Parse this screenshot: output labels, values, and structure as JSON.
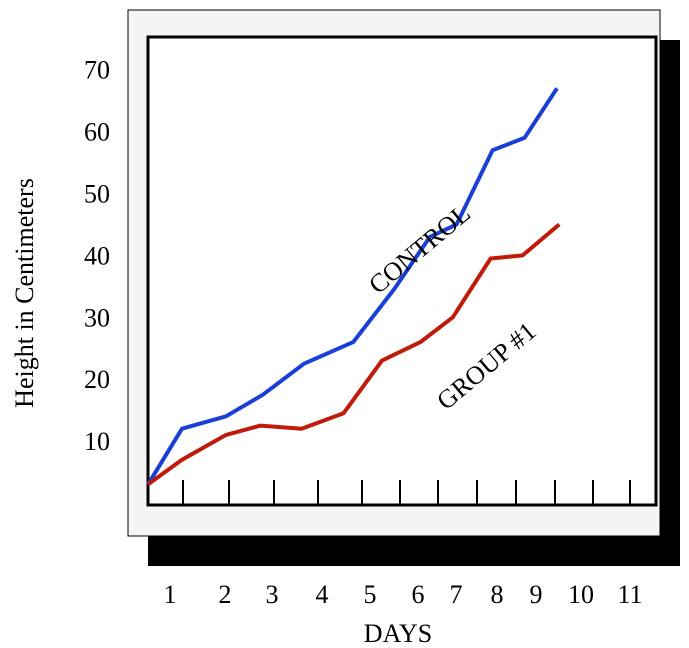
{
  "chart_data": {
    "type": "line",
    "title": "",
    "xlabel": "DAYS",
    "ylabel": "Height in Centimeters",
    "x_ticks": [
      "1",
      "2",
      "3",
      "4",
      "5",
      "6",
      "7",
      "8",
      "9",
      "10",
      "11"
    ],
    "y_ticks": [
      "10",
      "20",
      "30",
      "40",
      "50",
      "60",
      "70"
    ],
    "xlim": [
      0.5,
      11.8
    ],
    "ylim": [
      3,
      82
    ],
    "series": [
      {
        "name": "CONTROL",
        "color": "#1a3fd6",
        "points": [
          [
            0.45,
            3
          ],
          [
            1,
            12
          ],
          [
            1.8,
            14
          ],
          [
            2.55,
            17.5
          ],
          [
            3.4,
            22.5
          ],
          [
            4.4,
            26
          ],
          [
            5.25,
            34.5
          ],
          [
            6.0,
            43
          ],
          [
            6.7,
            45
          ],
          [
            7.6,
            57
          ],
          [
            8.4,
            59
          ],
          [
            9.2,
            67
          ]
        ]
      },
      {
        "name": "GROUP #1",
        "color": "#c01a0a",
        "points": [
          [
            0.45,
            3
          ],
          [
            1,
            7
          ],
          [
            1.8,
            11
          ],
          [
            2.5,
            12.5
          ],
          [
            3.35,
            12
          ],
          [
            4.2,
            14.5
          ],
          [
            5.0,
            23
          ],
          [
            5.8,
            26
          ],
          [
            6.6,
            30
          ],
          [
            7.55,
            39.5
          ],
          [
            8.35,
            40
          ],
          [
            9.25,
            45
          ]
        ]
      }
    ]
  }
}
